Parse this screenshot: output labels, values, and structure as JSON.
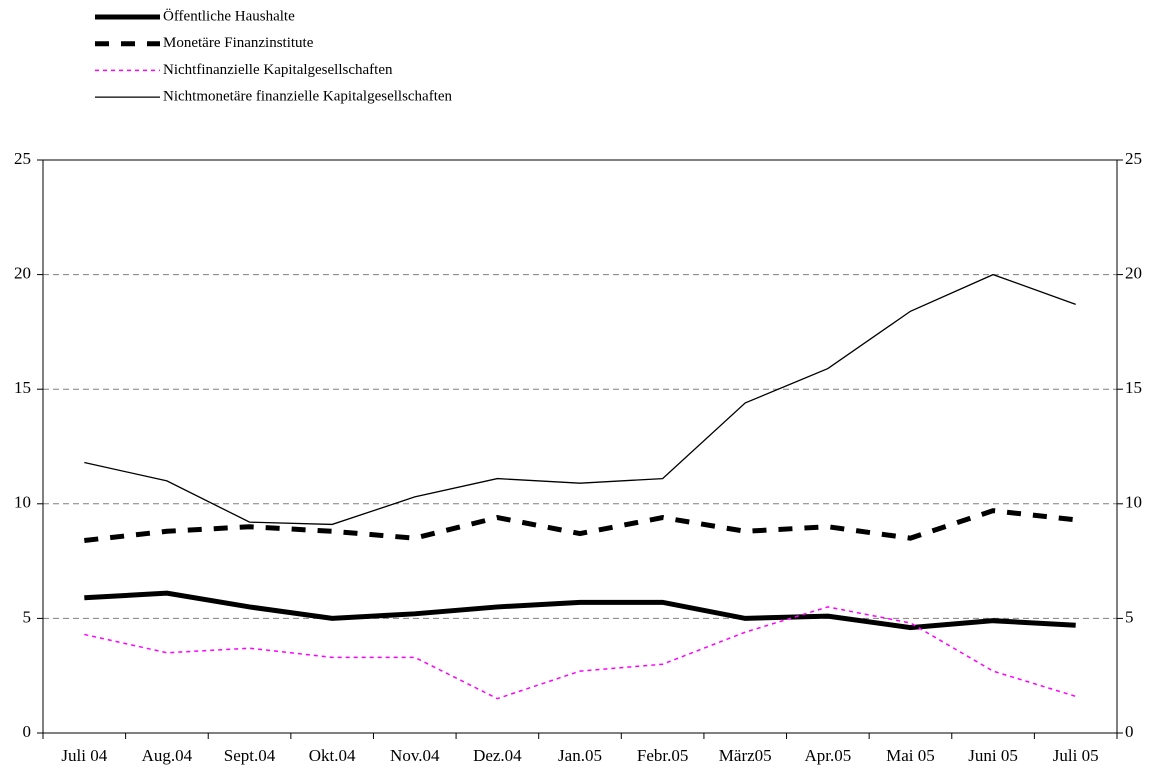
{
  "chart_data": {
    "type": "line",
    "categories": [
      "Juli 04",
      "Aug.04",
      "Sept.04",
      "Okt.04",
      "Nov.04",
      "Dez.04",
      "Jan.05",
      "Febr.05",
      "März05",
      "Apr.05",
      "Mai 05",
      "Juni 05",
      "Juli 05"
    ],
    "series": [
      {
        "name": "Öffentliche Haushalte",
        "color": "#000000",
        "values": [
          5.9,
          6.1,
          5.5,
          5.0,
          5.2,
          5.5,
          5.7,
          5.7,
          5.0,
          5.1,
          4.6,
          4.9,
          4.7
        ]
      },
      {
        "name": "Monetäre Finanzinstitute",
        "color": "#000000",
        "values": [
          8.4,
          8.8,
          9.0,
          8.8,
          8.5,
          9.4,
          8.7,
          9.4,
          8.8,
          9.0,
          8.5,
          9.7,
          9.3
        ]
      },
      {
        "name": "Nichtfinanzielle Kapitalgesellschaften",
        "color": "#ff00ff",
        "values": [
          4.3,
          3.5,
          3.7,
          3.3,
          3.3,
          1.5,
          2.7,
          3.0,
          4.4,
          5.5,
          4.8,
          2.7,
          1.6
        ]
      },
      {
        "name": "Nichtmonetäre finanzielle Kapitalgesellschaften",
        "color": "#000000",
        "values": [
          11.8,
          11.0,
          9.2,
          9.1,
          10.3,
          11.1,
          10.9,
          11.1,
          14.4,
          15.9,
          18.4,
          20.0,
          18.7
        ]
      }
    ],
    "ylim": [
      0,
      25
    ],
    "yticks": [
      0,
      5,
      10,
      15,
      20,
      25
    ],
    "y2lim": [
      0,
      25
    ],
    "y2ticks": [
      0,
      5,
      10,
      15,
      20,
      25
    ],
    "grid": true,
    "legend": "top-left"
  }
}
